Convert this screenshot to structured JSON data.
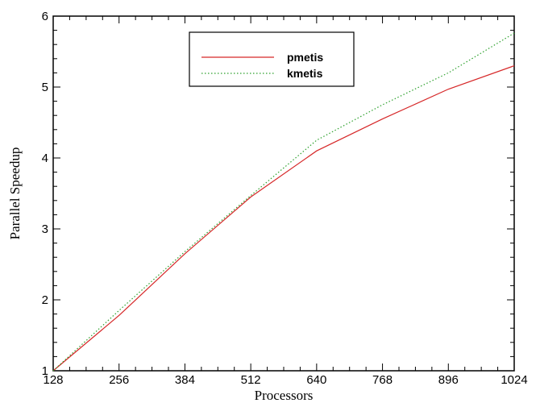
{
  "chart_data": {
    "type": "line",
    "title": "",
    "xlabel": "Processors",
    "ylabel": "Parallel Speedup",
    "x": [
      128,
      256,
      384,
      512,
      640,
      768,
      896,
      1024
    ],
    "xlim": [
      128,
      1024
    ],
    "ylim": [
      1,
      6
    ],
    "xticks": [
      "128",
      "256",
      "384",
      "512",
      "640",
      "768",
      "896",
      "1024"
    ],
    "yticks": [
      "1",
      "2",
      "3",
      "4",
      "5",
      "6"
    ],
    "grid": false,
    "legend_position": "top-center",
    "series": [
      {
        "name": "pmetis",
        "color": "#d62728",
        "dash": "solid",
        "values": [
          1.0,
          1.78,
          2.65,
          3.45,
          4.1,
          4.55,
          4.97,
          5.3
        ]
      },
      {
        "name": "kmetis",
        "color": "#2ca02c",
        "dash": "dotted",
        "values": [
          1.0,
          1.85,
          2.68,
          3.47,
          4.25,
          4.75,
          5.2,
          5.76
        ]
      }
    ]
  }
}
